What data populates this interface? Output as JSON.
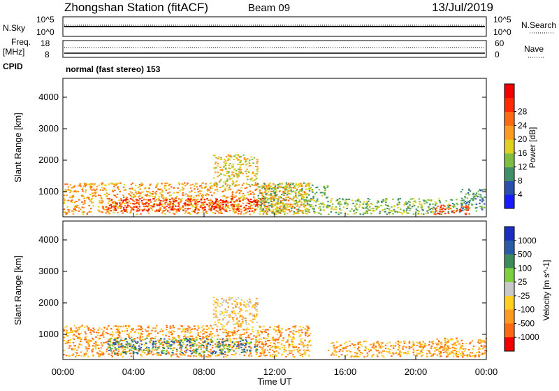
{
  "header": {
    "station": "Zhongshan Station (fitACF)",
    "beam": "Beam 09",
    "date": "13/Jul/2019"
  },
  "sky_panel": {
    "left_label": "N.Sky",
    "left_ticks": [
      "10^5",
      "10^0"
    ],
    "right_label": "N.Search",
    "right_ticks": [
      "10^5",
      "10^0"
    ]
  },
  "freq_panel": {
    "left_label_line1": "Freq.",
    "left_label_line2": "[MHz]",
    "left_ticks": [
      "18",
      "8"
    ],
    "right_label": "Nave",
    "right_ticks": [
      "60",
      "0"
    ]
  },
  "cpid": {
    "label": "CPID",
    "text": "normal (fast stereo) 153"
  },
  "x_axis": {
    "label": "Time UT",
    "ticks": [
      "00:00",
      "04:00",
      "08:00",
      "12:00",
      "16:00",
      "20:00",
      "00:00"
    ]
  },
  "chart_data": [
    {
      "type": "heatmap",
      "name": "power",
      "ylabel": "Slant Range [km]",
      "yticks": [
        "1000",
        "2000",
        "3000",
        "4000"
      ],
      "ylim": [
        200,
        4600
      ],
      "xlim": [
        "00:00",
        "24:00"
      ],
      "colorbar": {
        "label": "Power [dB]",
        "ticks": [
          "4",
          "8",
          "12",
          "16",
          "20",
          "24",
          "28"
        ],
        "colors": [
          "#1a1aff",
          "#2a4fae",
          "#3f8f6a",
          "#7fbf3f",
          "#e0d020",
          "#ff9a20",
          "#ff6a10",
          "#ff2a00",
          "#f00000"
        ]
      },
      "regions": [
        {
          "t0": 0.0,
          "t1": 14.0,
          "r0": 300,
          "r1": 1300,
          "level": 18
        },
        {
          "t0": 2.5,
          "t1": 11.5,
          "r0": 400,
          "r1": 800,
          "level": 28
        },
        {
          "t0": 8.5,
          "t1": 11.0,
          "r0": 1200,
          "r1": 2200,
          "level": 16
        },
        {
          "t0": 11.0,
          "t1": 15.0,
          "r0": 300,
          "r1": 1300,
          "level": 10
        },
        {
          "t0": 15.0,
          "t1": 22.5,
          "r0": 300,
          "r1": 800,
          "level": 12
        },
        {
          "t0": 21.0,
          "t1": 23.0,
          "r0": 300,
          "r1": 600,
          "level": 28
        },
        {
          "t0": 22.5,
          "t1": 24.0,
          "r0": 400,
          "r1": 1100,
          "level": 8
        }
      ]
    },
    {
      "type": "heatmap",
      "name": "velocity",
      "ylabel": "Slant Range [km]",
      "yticks": [
        "1000",
        "2000",
        "3000",
        "4000"
      ],
      "ylim": [
        200,
        4600
      ],
      "xlim": [
        "00:00",
        "24:00"
      ],
      "colorbar": {
        "label": "Velocity [m s^-1]",
        "ticks": [
          "1000",
          "500",
          "100",
          "25",
          "-25",
          "-100",
          "-500",
          "-1000"
        ],
        "colors": [
          "#1a2fc0",
          "#2a5aa8",
          "#3f8a5a",
          "#7fcf3f",
          "#c8c8c8",
          "#ffd020",
          "#ff9a20",
          "#ff6a10",
          "#f00000"
        ]
      },
      "regions": [
        {
          "t0": 0.0,
          "t1": 14.0,
          "r0": 300,
          "r1": 1300,
          "level": -150
        },
        {
          "t0": 2.5,
          "t1": 11.0,
          "r0": 400,
          "r1": 900,
          "level": 60
        },
        {
          "t0": 8.5,
          "t1": 11.0,
          "r0": 1300,
          "r1": 2200,
          "level": -80
        },
        {
          "t0": 15.0,
          "t1": 22.5,
          "r0": 300,
          "r1": 800,
          "level": -200
        },
        {
          "t0": 21.0,
          "t1": 24.0,
          "r0": 300,
          "r1": 900,
          "level": -300
        }
      ]
    }
  ]
}
